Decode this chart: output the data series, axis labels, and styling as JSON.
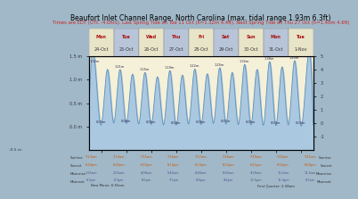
{
  "title": "Beaufort Inlet Channel Range, North Carolina (max. tidal range 1.93m 6.3ft)",
  "subtitle": "Times are EDT (UTC -4.0hrs). Last Spring Tide on Tue 11 Oct (h=1.32m 4.4ft). Next Spring Tide on Thu 27 Oct (h=1.40m 4.6ft)",
  "title_fontsize": 5.5,
  "subtitle_fontsize": 3.8,
  "ylim_left": [
    -0.5,
    1.5
  ],
  "ylim_right": [
    -2,
    5
  ],
  "bg_color": "#a0b8c8",
  "plot_bg": "#8ab0c8",
  "water_color": "#aac8e0",
  "peak_color": "#f5f0d8",
  "day_labels": [
    "Mon\n24-Oct",
    "Tue\n25-Oct",
    "Wed\n26-Oct",
    "Thu\n27-Oct",
    "Fri\n28-Oct",
    "Sat\n29-Oct",
    "Sun\n30-Oct",
    "Mon\n31-Oct",
    "Tue\n1-Nov"
  ],
  "high_tides": [
    1.32,
    1.21,
    1.15,
    1.19,
    1.22,
    1.25,
    1.32,
    1.38,
    1.4
  ],
  "low_tides": [
    0.05,
    0.08,
    0.06,
    0.04,
    0.06,
    0.07,
    0.05,
    0.03,
    0.04
  ],
  "num_days": 9,
  "left_ylabel": "m",
  "right_ylabel": "ft",
  "bottom_bar_color": "#d4d0b0",
  "bottom_bar_height": 0.18,
  "footer_bg": "#c8c4a0",
  "grid_color": "#9090a0",
  "header_bg": "#708898",
  "day_header_color": "#e8e4c8",
  "day_header_low_color": "#b8c4d8",
  "tide_curve_color": "#6090b8",
  "high_text_color": "#222244",
  "low_text_color": "#222244"
}
